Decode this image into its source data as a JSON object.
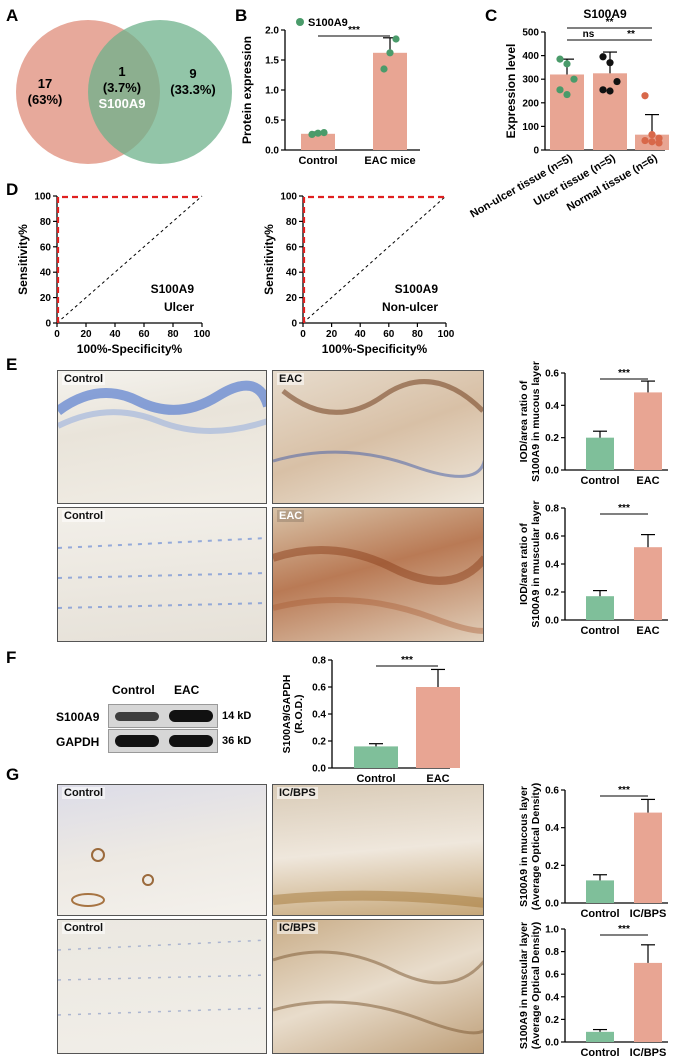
{
  "panel_letters": [
    "A",
    "B",
    "C",
    "D",
    "E",
    "F",
    "G"
  ],
  "colors": {
    "green": "#7fbf9a",
    "pink": "#e8a593",
    "green_dark": "#4a9b6a",
    "red_dash": "#e02020",
    "pink_point": "#d8684a"
  },
  "venn": {
    "left": {
      "count": "17",
      "pct": "(63%)"
    },
    "overlap": {
      "count": "1",
      "pct": "(3.7%)",
      "name": "S100A9"
    },
    "right": {
      "count": "9",
      "pct": "(33.3%)"
    }
  },
  "chart_data": [
    {
      "id": "B",
      "type": "bar",
      "categories": [
        "Control",
        "EAC mice"
      ],
      "values": [
        0.27,
        1.62
      ],
      "errors": [
        0.03,
        0.25
      ],
      "points": [
        [
          0.26,
          0.28,
          0.29
        ],
        [
          1.35,
          1.62,
          1.85
        ]
      ],
      "ylabel": "Protein expression",
      "ylim": [
        0,
        2.0
      ],
      "yticks": [
        "0.0",
        "0.5",
        "1.0",
        "1.5",
        "2.0"
      ],
      "legend": "S100A9",
      "sig": "***"
    },
    {
      "id": "C",
      "type": "bar",
      "title": "S100A9",
      "categories": [
        "Non-ulcer tissue (n=5)",
        "Ulcer tissue (n=5)",
        "Normal tissue (n=6)"
      ],
      "values": [
        320,
        325,
        65
      ],
      "errors": [
        65,
        90,
        85
      ],
      "ylabel": "Expression level",
      "ylim": [
        0,
        500
      ],
      "yticks": [
        "0",
        "100",
        "200",
        "300",
        "400",
        "500"
      ],
      "sigs": [
        {
          "from": 0,
          "to": 1,
          "label": "ns"
        },
        {
          "from": 1,
          "to": 2,
          "label": "**"
        },
        {
          "from": 0,
          "to": 2,
          "label": "**"
        }
      ]
    },
    {
      "id": "D1",
      "type": "line",
      "xlabel": "100%-Specificity%",
      "ylabel": "Sensitivity%",
      "xticks": [
        "0",
        "20",
        "40",
        "60",
        "80",
        "100"
      ],
      "yticks": [
        "0",
        "20",
        "40",
        "60",
        "80",
        "100"
      ],
      "note1": "S100A9",
      "note2": "Ulcer"
    },
    {
      "id": "D2",
      "type": "line",
      "xlabel": "100%-Specificity%",
      "ylabel": "Sensitivity%",
      "xticks": [
        "0",
        "20",
        "40",
        "60",
        "80",
        "100"
      ],
      "yticks": [
        "0",
        "20",
        "40",
        "60",
        "80",
        "100"
      ],
      "note1": "S100A9",
      "note2": "Non-ulcer"
    },
    {
      "id": "E1",
      "type": "bar",
      "categories": [
        "Control",
        "EAC"
      ],
      "values": [
        0.2,
        0.48
      ],
      "errors": [
        0.04,
        0.07
      ],
      "ylabel1": "IOD/area ratio of",
      "ylabel2": "S100A9 in mucous layer",
      "ylim": [
        0,
        0.6
      ],
      "yticks": [
        "0.0",
        "0.2",
        "0.4",
        "0.6"
      ],
      "sig": "***"
    },
    {
      "id": "E2",
      "type": "bar",
      "categories": [
        "Control",
        "EAC"
      ],
      "values": [
        0.17,
        0.52
      ],
      "errors": [
        0.04,
        0.09
      ],
      "ylabel1": "IOD/area ratio of",
      "ylabel2": "S100A9 in muscular layer",
      "ylim": [
        0,
        0.8
      ],
      "yticks": [
        "0.0",
        "0.2",
        "0.4",
        "0.6",
        "0.8"
      ],
      "sig": "***"
    },
    {
      "id": "F",
      "type": "bar",
      "categories": [
        "Control",
        "EAC"
      ],
      "values": [
        0.16,
        0.6
      ],
      "errors": [
        0.02,
        0.13
      ],
      "ylabel1": "S100A9/GAPDH",
      "ylabel2": "(R.O.D.)",
      "ylim": [
        0,
        0.8
      ],
      "yticks": [
        "0.0",
        "0.2",
        "0.4",
        "0.6",
        "0.8"
      ],
      "sig": "***"
    },
    {
      "id": "G1",
      "type": "bar",
      "categories": [
        "Control",
        "IC/BPS"
      ],
      "values": [
        0.12,
        0.48
      ],
      "errors": [
        0.03,
        0.07
      ],
      "ylabel1": "S100A9 in mucous layer",
      "ylabel2": "(Average Optical Density)",
      "ylim": [
        0,
        0.6
      ],
      "yticks": [
        "0.0",
        "0.2",
        "0.4",
        "0.6"
      ],
      "sig": "***"
    },
    {
      "id": "G2",
      "type": "bar",
      "categories": [
        "Control",
        "IC/BPS"
      ],
      "values": [
        0.09,
        0.7
      ],
      "errors": [
        0.02,
        0.16
      ],
      "ylabel1": "S100A9 in muscular layer",
      "ylabel2": "(Average Optical Density)",
      "ylim": [
        0,
        1.0
      ],
      "yticks": [
        "0.0",
        "0.2",
        "0.4",
        "0.6",
        "0.8",
        "1.0"
      ],
      "sig": "***"
    }
  ],
  "micro_labels": {
    "e1": "Control",
    "e2": "EAC",
    "e3": "Control",
    "e4": "EAC",
    "g1": "Control",
    "g2": "IC/BPS",
    "g3": "Control",
    "g4": "IC/BPS"
  },
  "blot": {
    "col1": "Control",
    "col2": "EAC",
    "row1": "S100A9",
    "row2": "GAPDH",
    "kd1": "14 kD",
    "kd2": "36 kD"
  }
}
